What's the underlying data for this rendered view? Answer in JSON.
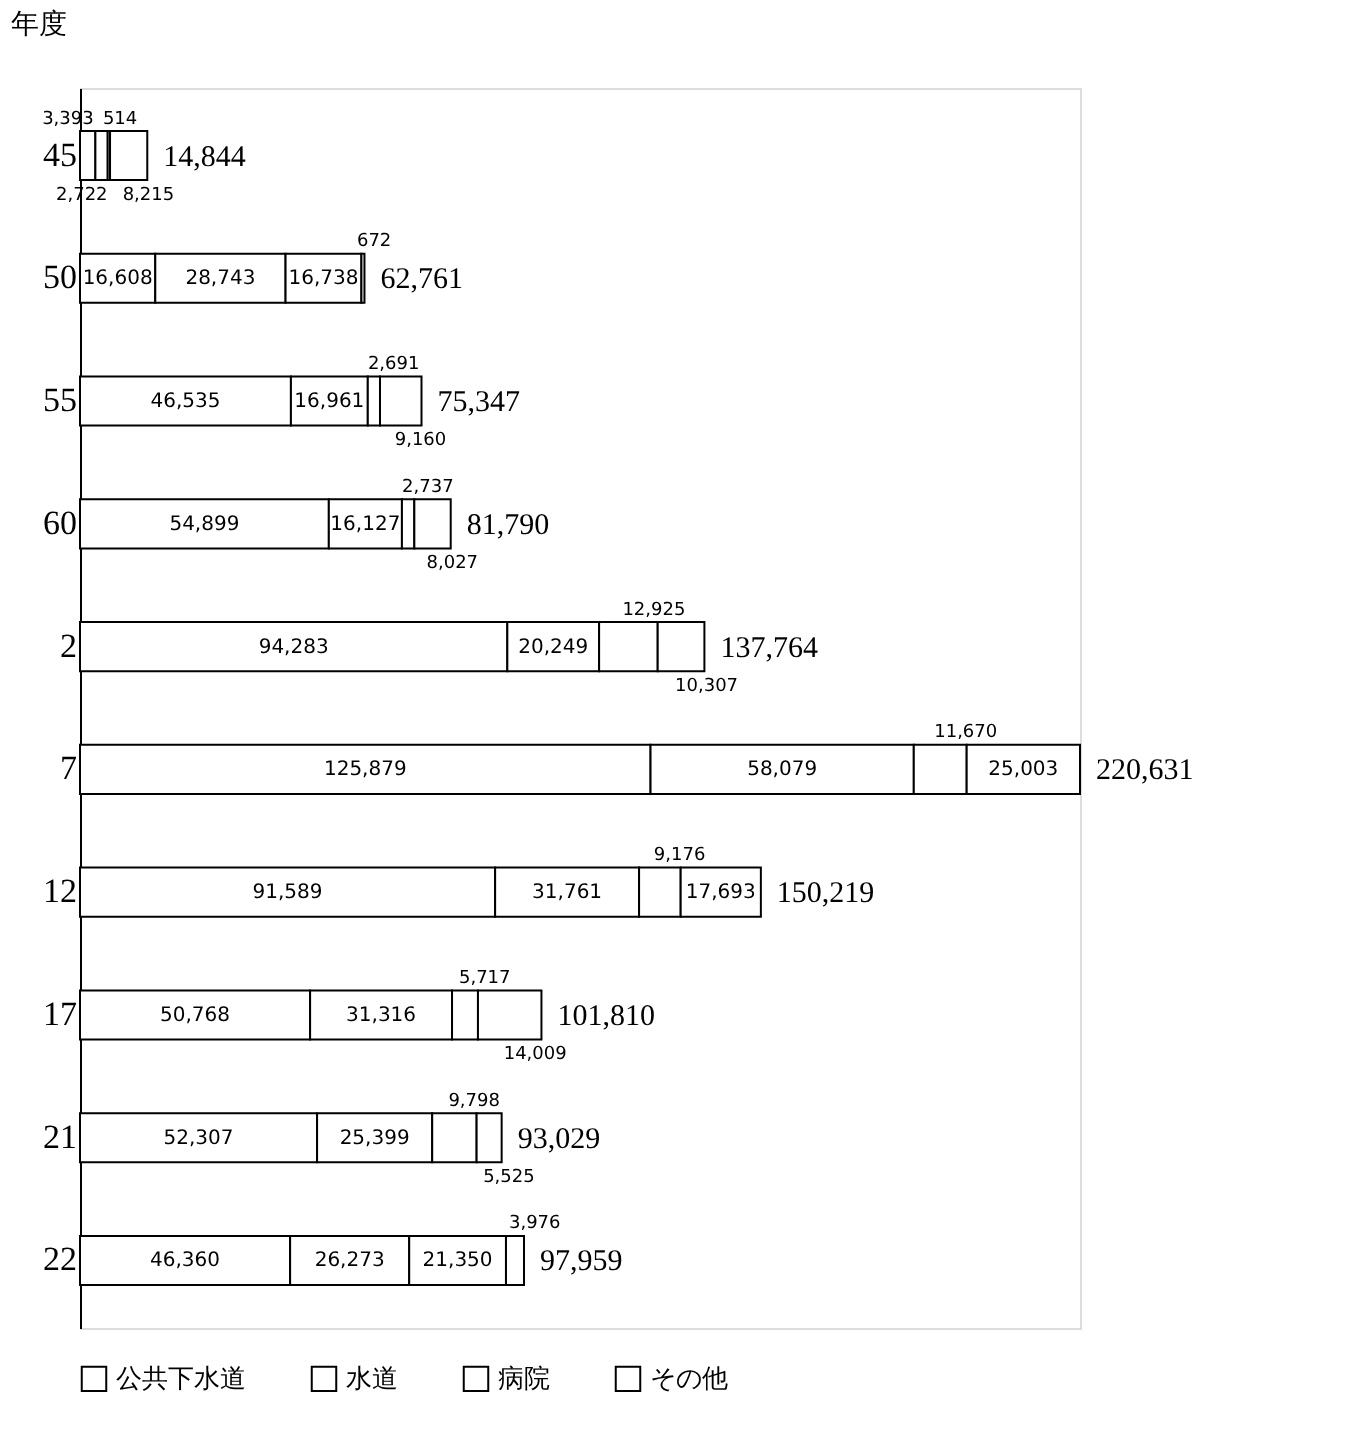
{
  "chart_data": {
    "type": "bar",
    "orientation": "horizontal",
    "stacked": true,
    "ylabel": "年度",
    "categories": [
      "45",
      "50",
      "55",
      "60",
      "2",
      "7",
      "12",
      "17",
      "21",
      "22"
    ],
    "series": [
      {
        "name": "公共下水道",
        "color": "#ffffff",
        "values": [
          3393,
          16608,
          46535,
          54899,
          94283,
          125879,
          91589,
          50768,
          52307,
          46360
        ],
        "value_labels": [
          "3,393",
          "16,608",
          "46,535",
          "54,899",
          "94,283",
          "125,879",
          "91,589",
          "50,768",
          "52,307",
          "46,360"
        ]
      },
      {
        "name": "水道",
        "color": "#ffffff",
        "values": [
          2722,
          28743,
          16961,
          16127,
          20249,
          58079,
          31761,
          31316,
          25399,
          26273
        ],
        "value_labels": [
          "2,722",
          "28,743",
          "16,961",
          "16,127",
          "20,249",
          "58,079",
          "31,761",
          "31,316",
          "25,399",
          "26,273"
        ]
      },
      {
        "name": "病院",
        "color": "#ffffff",
        "values": [
          514,
          16738,
          2691,
          2737,
          12925,
          11670,
          9176,
          5717,
          9798,
          21350
        ],
        "value_labels": [
          "514",
          "16,738",
          "2,691",
          "2,737",
          "12,925",
          "11,670",
          "9,176",
          "5,717",
          "9,798",
          "21,350"
        ]
      },
      {
        "name": "その他",
        "color": "#ffffff",
        "values": [
          8215,
          672,
          9160,
          8027,
          10307,
          25003,
          17693,
          14009,
          5525,
          3976
        ],
        "value_labels": [
          "8,215",
          "672",
          "9,160",
          "8,027",
          "10,307",
          "25,003",
          "17,693",
          "14,009",
          "5,525",
          "3,976"
        ]
      }
    ],
    "totals": [
      "14,844",
      "62,761",
      "75,347",
      "81,790",
      "137,764",
      "220,631",
      "150,219",
      "101,810",
      "93,029",
      "97,959"
    ],
    "data_labels": true,
    "legend": "bottom",
    "grid": false
  }
}
